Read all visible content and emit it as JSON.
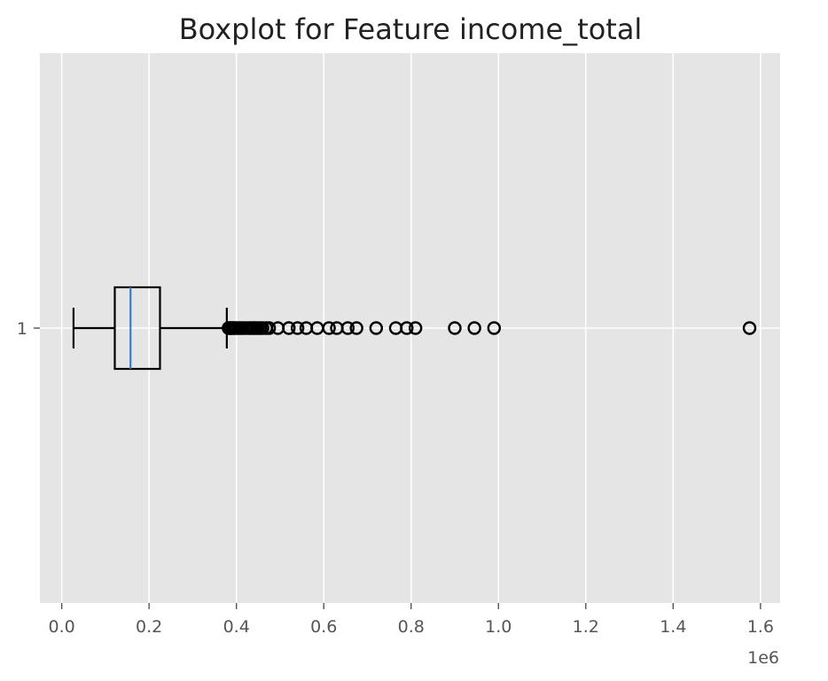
{
  "chart_data": {
    "type": "boxplot",
    "title": "Boxplot for Feature income_total",
    "xlabel": "",
    "ylabel": "",
    "orientation": "horizontal",
    "xlim": [
      -0.05,
      1.645
    ],
    "x_ticks": [
      0.0,
      0.2,
      0.4,
      0.6,
      0.8,
      1.0,
      1.2,
      1.4,
      1.6
    ],
    "x_tick_labels": [
      "0.0",
      "0.2",
      "0.4",
      "0.6",
      "0.8",
      "1.0",
      "1.2",
      "1.4",
      "1.6"
    ],
    "x_offset_label": "1e6",
    "y_tick_labels": [
      "1"
    ],
    "grid": true,
    "colors": {
      "background": "#e5e5e5",
      "grid": "#ffffff",
      "box": "#000000",
      "median": "#3a7fc1",
      "flier": "#000000"
    },
    "boxes": [
      {
        "label": "1",
        "whisker_low": 0.027,
        "q1": 0.1215,
        "median": 0.1575,
        "q3": 0.225,
        "whisker_high": 0.378,
        "fliers": [
          0.382,
          0.385,
          0.387,
          0.39,
          0.393,
          0.396,
          0.4,
          0.405,
          0.41,
          0.414,
          0.42,
          0.427,
          0.432,
          0.437,
          0.44,
          0.445,
          0.45,
          0.455,
          0.46,
          0.468,
          0.475,
          0.495,
          0.52,
          0.54,
          0.56,
          0.585,
          0.612,
          0.63,
          0.655,
          0.675,
          0.72,
          0.765,
          0.79,
          0.81,
          0.9,
          0.945,
          0.99,
          1.575
        ]
      }
    ]
  }
}
